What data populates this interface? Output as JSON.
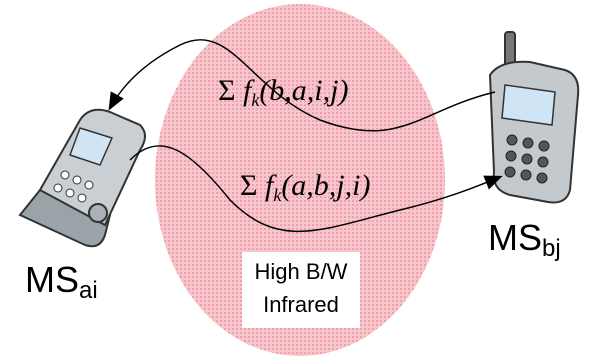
{
  "flows": [
    {
      "sigma": "Σ",
      "f": "f",
      "sub": "k",
      "args": "(b,a,i,j)"
    },
    {
      "sigma": "Σ",
      "f": "f",
      "sub": "k",
      "args": "(a,b,j,i)"
    }
  ],
  "nodes": [
    {
      "label": "MS",
      "sub": "ai"
    },
    {
      "label": "MS",
      "sub": "bj"
    }
  ],
  "region": {
    "lines": [
      "High B/W",
      "Infrared"
    ]
  }
}
